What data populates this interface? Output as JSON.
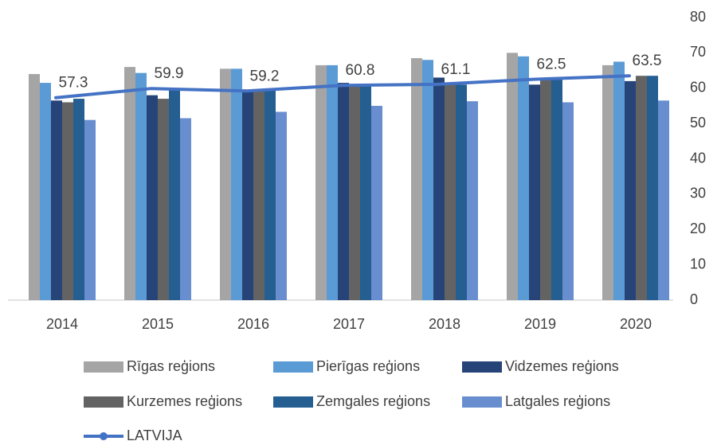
{
  "chart_data": {
    "type": "bar",
    "categories": [
      "2014",
      "2015",
      "2016",
      "2017",
      "2018",
      "2019",
      "2020"
    ],
    "series": [
      {
        "name": "Rīgas reģions",
        "color": "#a5a5a5",
        "values": [
          64,
          66,
          65.5,
          66.5,
          68.5,
          70,
          66.5
        ]
      },
      {
        "name": "Pierīgas reģions",
        "color": "#5b9bd5",
        "values": [
          61.5,
          64.3,
          65.5,
          66.5,
          68,
          69,
          67.5
        ]
      },
      {
        "name": "Vidzemes reģions",
        "color": "#264478",
        "values": [
          56.5,
          58,
          59.5,
          61.5,
          63,
          61,
          62
        ]
      },
      {
        "name": "Kurzemes reģions",
        "color": "#636363",
        "values": [
          56,
          57,
          59.5,
          60.5,
          61.5,
          62.5,
          63.5
        ]
      },
      {
        "name": "Zemgales reģions",
        "color": "#255e91",
        "values": [
          57,
          60,
          59.3,
          61,
          61,
          62.5,
          63.5
        ]
      },
      {
        "name": "Latgales reģions",
        "color": "#698ed0",
        "values": [
          51,
          51.5,
          53.3,
          55,
          56.3,
          56,
          56.5
        ]
      },
      {
        "name": "LATVIJA",
        "color": "#4472c4",
        "type": "line",
        "values": [
          57.3,
          59.9,
          59.2,
          60.8,
          61.1,
          62.5,
          63.5
        ]
      }
    ],
    "ylim": [
      0,
      80
    ],
    "yticks": [
      0,
      10,
      20,
      30,
      40,
      50,
      60,
      70,
      80
    ],
    "y_axis_side": "right"
  }
}
